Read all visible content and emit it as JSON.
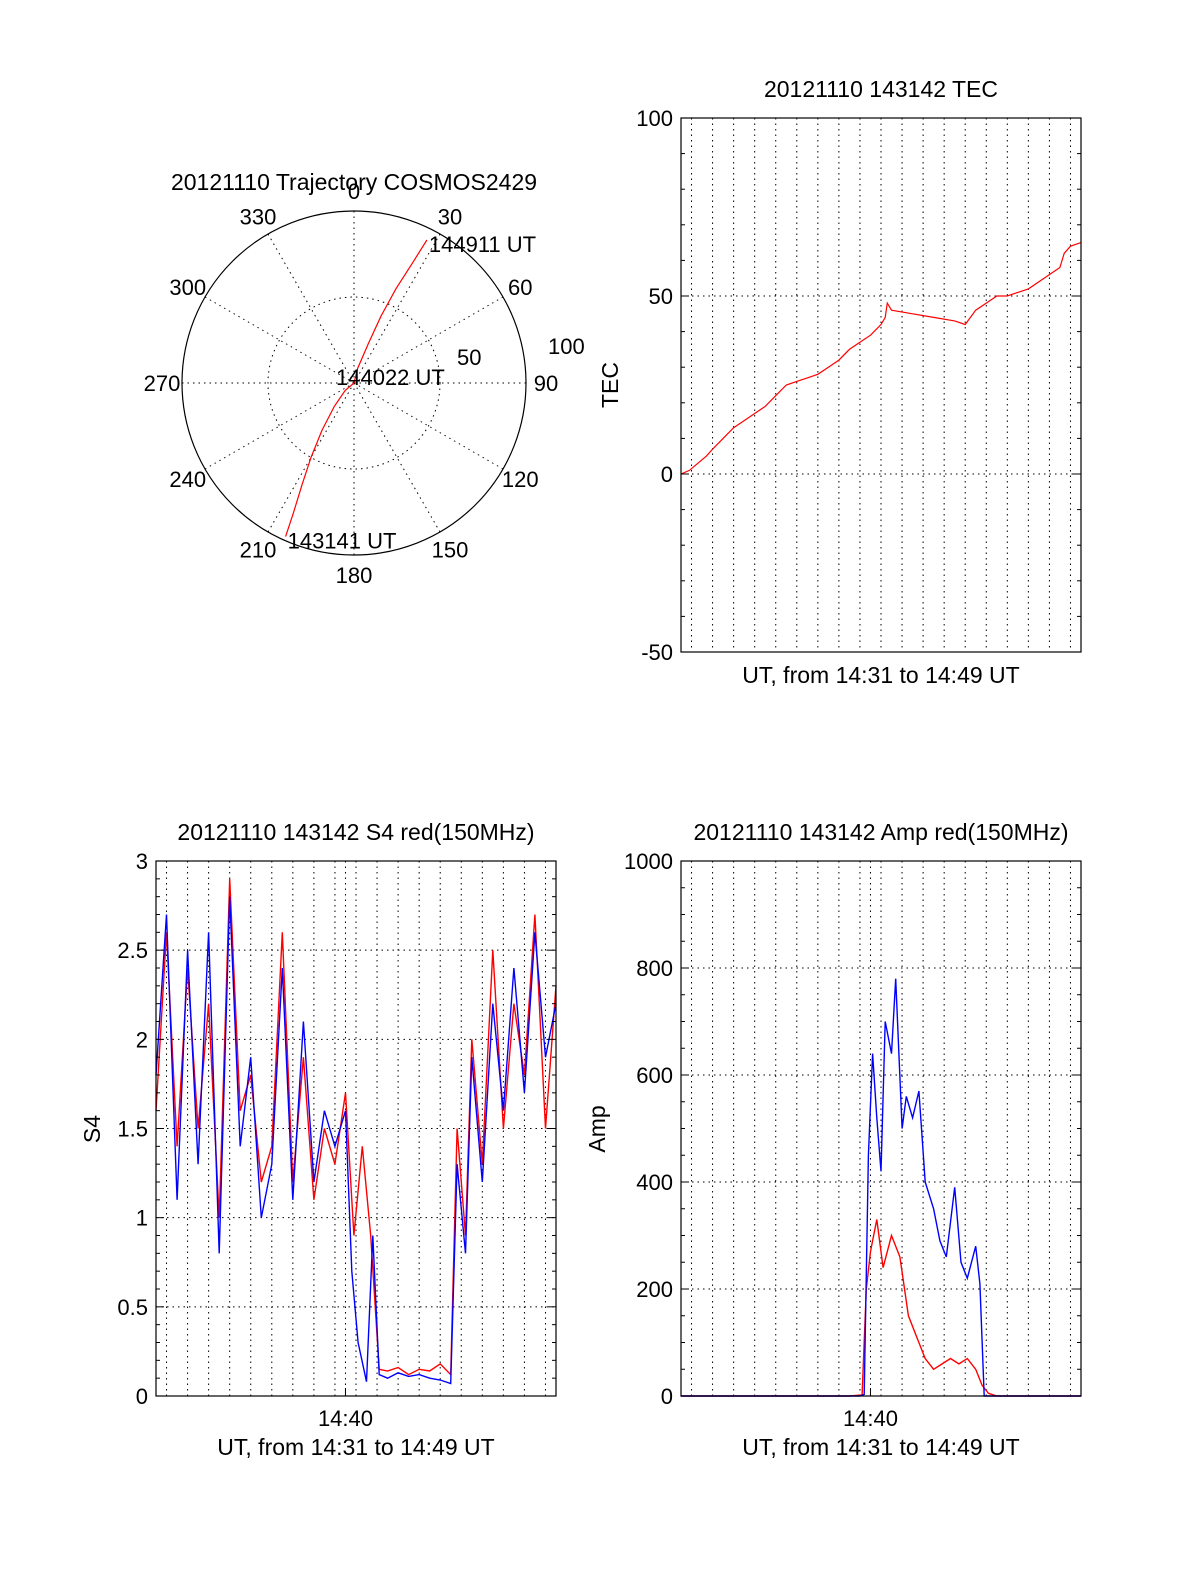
{
  "colors": {
    "red": "#ff0000",
    "blue": "#0000ff"
  },
  "chart_data": [
    {
      "id": "trajectory",
      "type": "polar",
      "title": "20121110 Trajectory COSMOS2429",
      "azimuth_ticks": [
        0,
        30,
        60,
        90,
        120,
        150,
        180,
        210,
        240,
        270,
        300,
        330
      ],
      "radius_labels": [
        "50",
        "100"
      ],
      "series": [
        {
          "color": "red",
          "points_az_zenith": [
            [
              204,
              88
            ],
            [
              205,
              75
            ],
            [
              207,
              60
            ],
            [
              210,
              45
            ],
            [
              214,
              30
            ],
            [
              220,
              16
            ],
            [
              230,
              6
            ],
            [
              0,
              0
            ],
            [
              14,
              8
            ],
            [
              20,
              22
            ],
            [
              22,
              38
            ],
            [
              24,
              54
            ],
            [
              26,
              70
            ],
            [
              27,
              84
            ]
          ]
        }
      ],
      "annotations": [
        {
          "text": "144911 UT",
          "az": 27,
          "zenith": 84
        },
        {
          "text": "144022 UT",
          "az": 0,
          "zenith": 0
        },
        {
          "text": "143141 UT",
          "az": 204,
          "zenith": 88
        }
      ]
    },
    {
      "id": "tec",
      "type": "line",
      "title": "20121110 143142 TEC",
      "xlabel": "UT, from 14:31 to 14:49 UT",
      "ylabel": "TEC",
      "ylim": [
        -50,
        100
      ],
      "yticks": [
        -50,
        0,
        50,
        100
      ],
      "xlim_min": [
        0,
        19
      ],
      "xticks": [],
      "series": [
        {
          "color": "red",
          "x_min": [
            0,
            0.4,
            0.8,
            1.2,
            1.5,
            2,
            2.5,
            3,
            3.5,
            4,
            4.5,
            5,
            5.5,
            6,
            6.5,
            7,
            7.5,
            8,
            8.5,
            9,
            9.5,
            9.7,
            9.8,
            10,
            11,
            12,
            13,
            13.5,
            14,
            14.5,
            15,
            15.5,
            16,
            16.5,
            17,
            17.5,
            18,
            18.2,
            18.5,
            19
          ],
          "y": [
            0,
            1,
            3,
            5,
            7,
            10,
            13,
            15,
            17,
            19,
            22,
            25,
            26,
            27,
            28,
            30,
            32,
            35,
            37,
            39,
            42,
            44,
            48,
            46,
            45,
            44,
            43,
            42,
            46,
            48,
            50,
            50,
            51,
            52,
            54,
            56,
            58,
            62,
            64,
            65
          ]
        }
      ]
    },
    {
      "id": "s4",
      "type": "line",
      "title": "20121110 143142 S4 red(150MHz)",
      "xlabel": "UT, from 14:31 to 14:49 UT",
      "ylabel": "S4",
      "ylim": [
        0,
        3
      ],
      "yticks": [
        "0",
        "0.5",
        "1",
        "1.5",
        "2",
        "2.5",
        "3"
      ],
      "xlim_min": [
        0,
        19
      ],
      "xticks": [
        {
          "x_min": 9,
          "label": "14:40"
        }
      ],
      "series": [
        {
          "color": "red",
          "x_min": [
            0,
            0.5,
            1,
            1.5,
            2,
            2.5,
            3,
            3.5,
            4,
            4.5,
            5,
            5.5,
            6,
            6.5,
            7,
            7.5,
            8,
            8.5,
            9,
            9.4,
            9.8,
            10.2,
            10.6,
            11,
            11.5,
            12,
            12.5,
            13,
            13.5,
            14,
            14.3,
            14.7,
            15,
            15.5,
            16,
            16.5,
            17,
            17.5,
            18,
            18.5,
            19
          ],
          "y": [
            1.6,
            2.6,
            1.4,
            2.4,
            1.5,
            2.2,
            1.0,
            2.9,
            1.6,
            1.8,
            1.2,
            1.4,
            2.6,
            1.2,
            1.9,
            1.1,
            1.5,
            1.3,
            1.7,
            0.9,
            1.4,
            0.9,
            0.15,
            0.14,
            0.16,
            0.12,
            0.15,
            0.14,
            0.18,
            0.12,
            1.5,
            0.9,
            2.0,
            1.3,
            2.5,
            1.5,
            2.2,
            1.8,
            2.7,
            1.5,
            2.3
          ]
        },
        {
          "color": "blue",
          "x_min": [
            0,
            0.5,
            1,
            1.5,
            2,
            2.5,
            3,
            3.5,
            4,
            4.5,
            5,
            5.5,
            6,
            6.5,
            7,
            7.5,
            8,
            8.5,
            9,
            9.3,
            9.6,
            10,
            10.3,
            10.6,
            11,
            11.5,
            12,
            12.5,
            13,
            13.5,
            14,
            14.3,
            14.7,
            15,
            15.5,
            16,
            16.5,
            17,
            17.5,
            18,
            18.5,
            19
          ],
          "y": [
            1.8,
            2.7,
            1.1,
            2.5,
            1.3,
            2.6,
            0.8,
            2.8,
            1.4,
            1.9,
            1.0,
            1.3,
            2.4,
            1.1,
            2.1,
            1.2,
            1.6,
            1.4,
            1.6,
            0.7,
            0.3,
            0.08,
            0.9,
            0.12,
            0.1,
            0.13,
            0.11,
            0.12,
            0.1,
            0.09,
            0.07,
            1.3,
            0.8,
            1.9,
            1.2,
            2.2,
            1.6,
            2.4,
            1.7,
            2.6,
            1.9,
            2.2
          ]
        }
      ]
    },
    {
      "id": "amp",
      "type": "line",
      "title": "20121110 143142 Amp red(150MHz)",
      "xlabel": "UT, from 14:31 to 14:49 UT",
      "ylabel": "Amp",
      "ylim": [
        0,
        1000
      ],
      "yticks": [
        0,
        200,
        400,
        600,
        800,
        1000
      ],
      "xlim_min": [
        0,
        19
      ],
      "xticks": [
        {
          "x_min": 9,
          "label": "14:40"
        }
      ],
      "series": [
        {
          "color": "red",
          "x_min": [
            0,
            8,
            8.6,
            8.8,
            9,
            9.3,
            9.6,
            10,
            10.4,
            10.8,
            11.2,
            11.6,
            12,
            12.4,
            12.8,
            13.2,
            13.6,
            14,
            14.3,
            14.6,
            15,
            19
          ],
          "y": [
            0,
            0,
            2,
            200,
            270,
            330,
            240,
            300,
            260,
            150,
            110,
            70,
            50,
            60,
            70,
            60,
            70,
            50,
            20,
            5,
            0,
            0
          ]
        },
        {
          "color": "blue",
          "x_min": [
            0,
            8.5,
            8.7,
            8.9,
            9.1,
            9.3,
            9.5,
            9.7,
            10,
            10.2,
            10.5,
            10.7,
            11,
            11.3,
            11.6,
            12,
            12.3,
            12.6,
            13,
            13.3,
            13.6,
            14,
            14.2,
            14.4,
            19
          ],
          "y": [
            0,
            0,
            3,
            450,
            640,
            520,
            420,
            700,
            640,
            780,
            500,
            560,
            520,
            570,
            400,
            350,
            290,
            260,
            390,
            250,
            220,
            280,
            210,
            0,
            0
          ]
        }
      ]
    }
  ]
}
